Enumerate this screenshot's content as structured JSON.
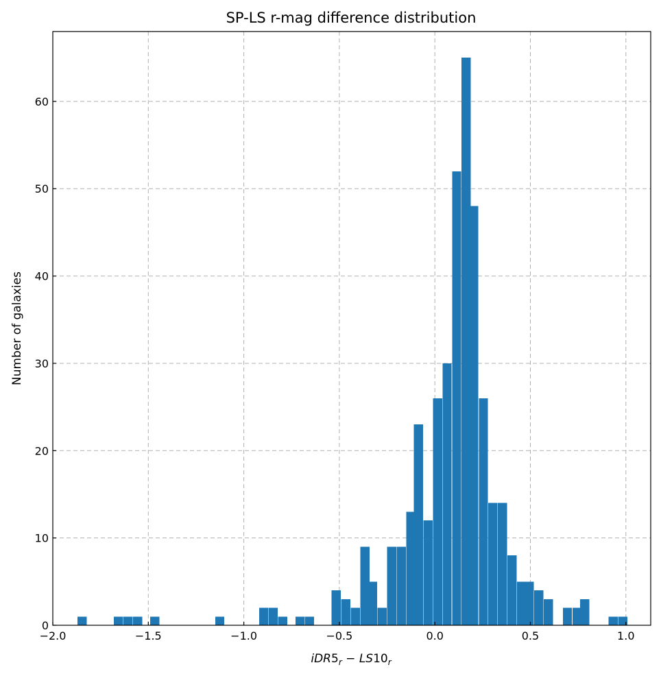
{
  "chart_data": {
    "type": "bar",
    "title": "SP-LS r-mag difference distribution",
    "xlabel": "iDR5_r − LS10_r",
    "ylabel": "Number of galaxies",
    "xlim": [
      -2.0,
      1.13
    ],
    "ylim": [
      0,
      68
    ],
    "xticks": [
      -2.0,
      -1.5,
      -1.0,
      -0.5,
      0.0,
      0.5,
      1.0
    ],
    "xtick_labels": [
      "−2.0",
      "−1.5",
      "−1.0",
      "−0.5",
      "0.0",
      "0.5",
      "1.0"
    ],
    "yticks": [
      0,
      10,
      20,
      30,
      40,
      50,
      60
    ],
    "ytick_labels": [
      "0",
      "10",
      "20",
      "30",
      "40",
      "50",
      "60"
    ],
    "grid": true,
    "bar_color": "#1f77b4",
    "bin_width": 0.048,
    "bins": [
      {
        "x": -1.87,
        "count": 1
      },
      {
        "x": -1.68,
        "count": 1
      },
      {
        "x": -1.63,
        "count": 1
      },
      {
        "x": -1.58,
        "count": 1
      },
      {
        "x": -1.49,
        "count": 1
      },
      {
        "x": -1.15,
        "count": 1
      },
      {
        "x": -0.92,
        "count": 2
      },
      {
        "x": -0.87,
        "count": 2
      },
      {
        "x": -0.82,
        "count": 1
      },
      {
        "x": -0.73,
        "count": 1
      },
      {
        "x": -0.68,
        "count": 1
      },
      {
        "x": -0.54,
        "count": 4
      },
      {
        "x": -0.49,
        "count": 3
      },
      {
        "x": -0.44,
        "count": 2
      },
      {
        "x": -0.39,
        "count": 9
      },
      {
        "x": -0.35,
        "count": 5
      },
      {
        "x": -0.3,
        "count": 2
      },
      {
        "x": -0.25,
        "count": 9
      },
      {
        "x": -0.2,
        "count": 9
      },
      {
        "x": -0.15,
        "count": 13
      },
      {
        "x": -0.11,
        "count": 23
      },
      {
        "x": -0.06,
        "count": 12
      },
      {
        "x": -0.01,
        "count": 26
      },
      {
        "x": 0.04,
        "count": 30
      },
      {
        "x": 0.09,
        "count": 52
      },
      {
        "x": 0.14,
        "count": 65
      },
      {
        "x": 0.18,
        "count": 48
      },
      {
        "x": 0.23,
        "count": 26
      },
      {
        "x": 0.28,
        "count": 14
      },
      {
        "x": 0.33,
        "count": 14
      },
      {
        "x": 0.38,
        "count": 8
      },
      {
        "x": 0.43,
        "count": 5
      },
      {
        "x": 0.47,
        "count": 5
      },
      {
        "x": 0.52,
        "count": 4
      },
      {
        "x": 0.57,
        "count": 3
      },
      {
        "x": 0.67,
        "count": 2
      },
      {
        "x": 0.72,
        "count": 2
      },
      {
        "x": 0.76,
        "count": 3
      },
      {
        "x": 0.91,
        "count": 1
      },
      {
        "x": 0.96,
        "count": 1
      }
    ]
  }
}
